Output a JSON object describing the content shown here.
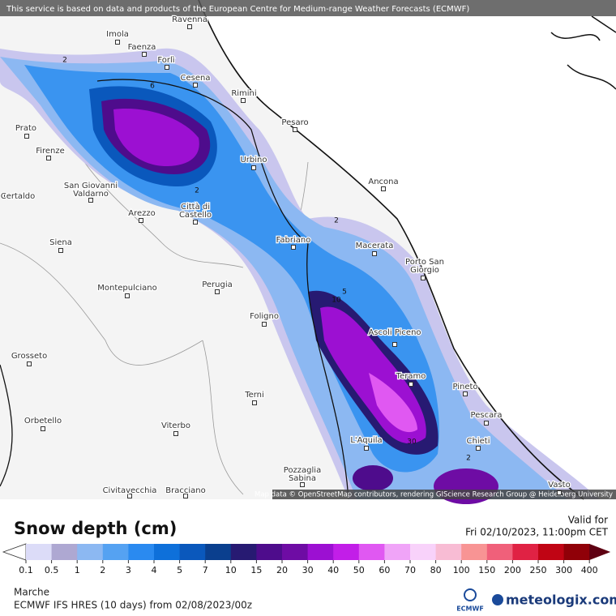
{
  "header": {
    "notice": "This service is based on data and products of the European Centre for Medium-range Weather Forecasts (ECMWF)"
  },
  "map": {
    "cities": [
      "Ravenna",
      "Imola",
      "Faenza",
      "Forlì",
      "Cesena",
      "Rimini",
      "Pesaro",
      "Prato",
      "Firenze",
      "Urbino",
      "Ancona",
      "San Giovanni Valdarno",
      "Certaldo",
      "Arezzo",
      "Città di Castello",
      "Fabriano",
      "Siena",
      "Macerata",
      "Porto San Giorgio",
      "Montepulciano",
      "Perugia",
      "Foligno",
      "Ascoli Piceno",
      "Grosseto",
      "Teramo",
      "Pineto",
      "Terni",
      "Pescara",
      "Orbetello",
      "Viterbo",
      "L'Aquila",
      "Chieti",
      "Pozzaglia Sabina",
      "Civitavecchia",
      "Bracciano",
      "Vasto"
    ],
    "contour_labels": [
      "2",
      "6",
      "2",
      "2",
      "5",
      "10",
      "30",
      "2"
    ],
    "attribution": "Map data © OpenStreetMap contributors, rendering GIScience Research Group @ Heidelberg University"
  },
  "legend": {
    "title": "Snow depth (cm)",
    "levels": [
      0.1,
      0.5,
      1,
      2,
      3,
      4,
      5,
      7,
      10,
      15,
      20,
      30,
      40,
      50,
      60,
      70,
      80,
      100,
      150,
      200,
      250,
      300,
      400
    ],
    "colors": [
      "#dcdcf8",
      "#aea8d2",
      "#8cb8f2",
      "#55a2f2",
      "#2a8af0",
      "#0e70da",
      "#0a58bc",
      "#0a3f8e",
      "#271a72",
      "#4e0c8c",
      "#6e0ca4",
      "#9c10d2",
      "#c21ee8",
      "#e058f2",
      "#f0a4f8",
      "#f8d2fa",
      "#f8bcd4",
      "#f89494",
      "#f0607a",
      "#e02244",
      "#c00414",
      "#900008"
    ],
    "over_color": "#5e0012"
  },
  "valid": {
    "label": "Valid for",
    "time": "Fri 02/10/2023, 11:00pm CET"
  },
  "footer": {
    "region": "Marche",
    "model": "ECMWF IFS HRES (10 days) from 02/08/2023/00z",
    "ecmwf": "ECMWF",
    "brand": "meteologix.com"
  }
}
